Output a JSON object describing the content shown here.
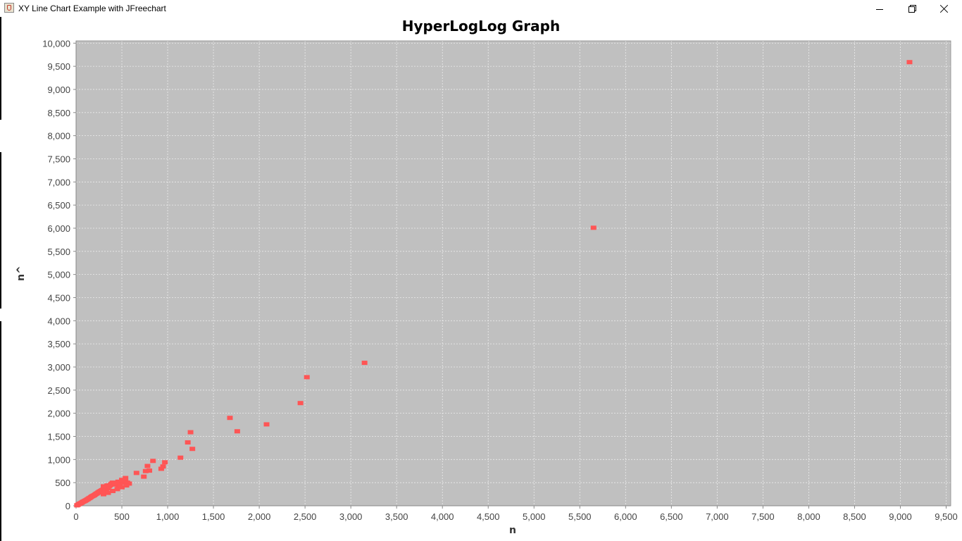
{
  "window": {
    "title": "XY Line Chart Example with JFreechart",
    "app_icon": "java-cup-icon",
    "controls": {
      "minimize_icon": "minimize-icon",
      "restore_icon": "restore-icon",
      "close_icon": "close-icon"
    }
  },
  "chart_data": {
    "type": "scatter",
    "title": "HyperLogLog Graph",
    "xlabel": "n",
    "ylabel": "n^",
    "xlim": [
      0,
      9550
    ],
    "ylim": [
      0,
      10050
    ],
    "x_ticks": [
      "0",
      "500",
      "1,000",
      "1,500",
      "2,000",
      "2,500",
      "3,000",
      "3,500",
      "4,000",
      "4,500",
      "5,000",
      "5,500",
      "6,000",
      "6,500",
      "7,000",
      "7,500",
      "8,000",
      "8,500",
      "9,000",
      "9,500"
    ],
    "y_ticks": [
      "0",
      "500",
      "1,000",
      "1,500",
      "2,000",
      "2,500",
      "3,000",
      "3,500",
      "4,000",
      "4,500",
      "5,000",
      "5,500",
      "6,000",
      "6,500",
      "7,000",
      "7,500",
      "8,000",
      "8,500",
      "9,000",
      "9,500",
      "10,000"
    ],
    "x_tick_values": [
      0,
      500,
      1000,
      1500,
      2000,
      2500,
      3000,
      3500,
      4000,
      4500,
      5000,
      5500,
      6000,
      6500,
      7000,
      7500,
      8000,
      8500,
      9000,
      9500
    ],
    "y_tick_values": [
      0,
      500,
      1000,
      1500,
      2000,
      2500,
      3000,
      3500,
      4000,
      4500,
      5000,
      5500,
      6000,
      6500,
      7000,
      7500,
      8000,
      8500,
      9000,
      9500,
      10000
    ],
    "grid": true,
    "legend": "none",
    "colors": {
      "plot_background": "#c0c0c0",
      "gridline": "#ececec",
      "point": "#ff5555"
    },
    "series": [
      {
        "x": [
          10,
          20,
          30,
          40,
          50,
          60,
          70,
          80,
          90,
          100,
          110,
          120,
          130,
          140,
          150,
          160,
          170,
          180,
          190,
          200,
          210,
          220,
          230,
          240,
          250,
          260,
          270,
          280,
          290,
          300,
          310,
          320,
          330,
          340,
          350,
          360,
          370,
          380,
          390,
          400,
          420,
          440,
          460,
          480,
          500,
          520,
          540,
          560,
          580,
          300,
          340,
          380,
          420,
          460,
          500,
          540,
          300,
          350,
          400,
          450,
          500,
          550,
          660,
          740,
          760,
          780,
          800,
          840,
          930,
          950,
          970,
          1140,
          1220,
          1250,
          1270,
          1680,
          1760,
          2080,
          2450,
          2520,
          3150,
          5650,
          9100
        ],
        "y": [
          10,
          20,
          35,
          45,
          55,
          65,
          80,
          90,
          100,
          110,
          120,
          135,
          145,
          160,
          170,
          185,
          200,
          210,
          220,
          230,
          245,
          260,
          270,
          285,
          300,
          310,
          320,
          335,
          345,
          300,
          320,
          340,
          360,
          380,
          400,
          420,
          440,
          460,
          480,
          500,
          480,
          460,
          440,
          420,
          500,
          550,
          520,
          500,
          480,
          420,
          440,
          460,
          480,
          520,
          560,
          600,
          250,
          280,
          320,
          360,
          400,
          440,
          710,
          630,
          750,
          860,
          760,
          970,
          800,
          850,
          940,
          1040,
          1370,
          1590,
          1230,
          1900,
          1610,
          1760,
          2220,
          2780,
          3090,
          6010,
          9590
        ]
      }
    ]
  }
}
